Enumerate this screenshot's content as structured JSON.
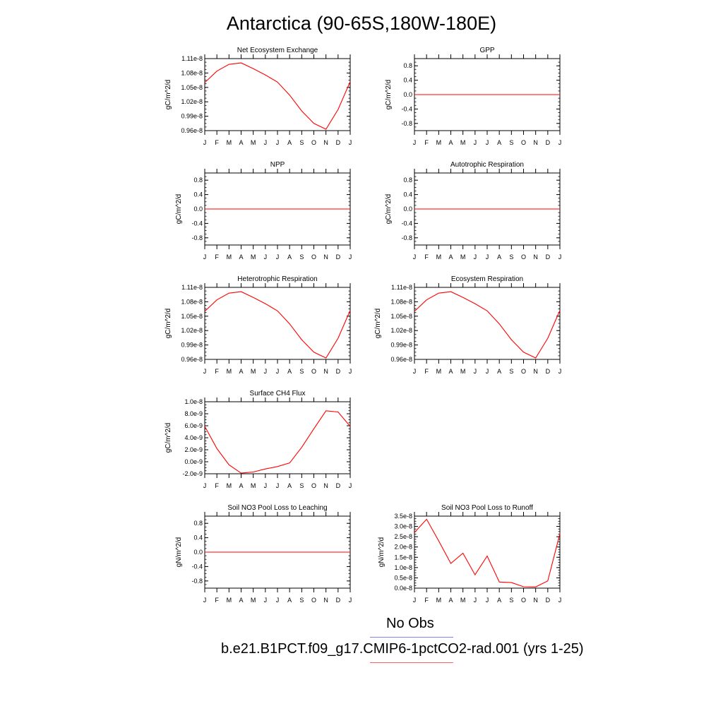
{
  "title": "Antarctica (90-65S,180W-180E)",
  "colors": {
    "model": "#ff0000",
    "obs": "#7f7fff"
  },
  "legend": {
    "obs_label": "No Obs",
    "model_label": "b.e21.B1PCT.f09_g17.CMIP6-1pctCO2-rad.001 (yrs 1-25)"
  },
  "chart_data": [
    {
      "type": "line",
      "title": "Net Ecosystem Exchange",
      "ylabel": "gC/m^2/d",
      "categories": [
        "J",
        "F",
        "M",
        "A",
        "M",
        "J",
        "J",
        "A",
        "S",
        "O",
        "N",
        "D",
        "J"
      ],
      "ylim": [
        9.6e-09,
        1.11e-08
      ],
      "yticks": [
        9.6e-09,
        9.9e-09,
        1.02e-08,
        1.05e-08,
        1.08e-08,
        1.11e-08
      ],
      "yticklabels": [
        "0.96e-8",
        "0.99e-8",
        "1.02e-8",
        "1.05e-8",
        "1.08e-8",
        "1.11e-8"
      ],
      "series": [
        {
          "values": [
            1.06e-08,
            1.084e-08,
            1.098e-08,
            1.101e-08,
            1.089e-08,
            1.076e-08,
            1.061e-08,
            1.034e-08,
            1.001e-08,
            9.75e-09,
            9.63e-09,
            1.004e-08,
            1.062e-08
          ]
        }
      ]
    },
    {
      "type": "line",
      "title": "GPP",
      "ylabel": "gC/m^2/d",
      "categories": [
        "J",
        "F",
        "M",
        "A",
        "M",
        "J",
        "J",
        "A",
        "S",
        "O",
        "N",
        "D",
        "J"
      ],
      "ylim": [
        -1,
        1
      ],
      "yticks": [
        -0.8,
        -0.4,
        0.0,
        0.4,
        0.8
      ],
      "yticklabels": [
        "-0.8",
        "-0.4",
        "0.0",
        "0.4",
        "0.8"
      ],
      "series": [
        {
          "values": [
            0,
            0,
            0,
            0,
            0,
            0,
            0,
            0,
            0,
            0,
            0,
            0,
            0
          ]
        }
      ]
    },
    {
      "type": "line",
      "title": "NPP",
      "ylabel": "gC/m^2/d",
      "categories": [
        "J",
        "F",
        "M",
        "A",
        "M",
        "J",
        "J",
        "A",
        "S",
        "O",
        "N",
        "D",
        "J"
      ],
      "ylim": [
        -1,
        1
      ],
      "yticks": [
        -0.8,
        -0.4,
        0.0,
        0.4,
        0.8
      ],
      "yticklabels": [
        "-0.8",
        "-0.4",
        "0.0",
        "0.4",
        "0.8"
      ],
      "series": [
        {
          "values": [
            0,
            0,
            0,
            0,
            0,
            0,
            0,
            0,
            0,
            0,
            0,
            0,
            0
          ]
        }
      ]
    },
    {
      "type": "line",
      "title": "Autotrophic Respiration",
      "ylabel": "gC/m^2/d",
      "categories": [
        "J",
        "F",
        "M",
        "A",
        "M",
        "J",
        "J",
        "A",
        "S",
        "O",
        "N",
        "D",
        "J"
      ],
      "ylim": [
        -1,
        1
      ],
      "yticks": [
        -0.8,
        -0.4,
        0.0,
        0.4,
        0.8
      ],
      "yticklabels": [
        "-0.8",
        "-0.4",
        "0.0",
        "0.4",
        "0.8"
      ],
      "series": [
        {
          "values": [
            0,
            0,
            0,
            0,
            0,
            0,
            0,
            0,
            0,
            0,
            0,
            0,
            0
          ]
        }
      ]
    },
    {
      "type": "line",
      "title": "Heterotrophic Respiration",
      "ylabel": "gC/m^2/d",
      "categories": [
        "J",
        "F",
        "M",
        "A",
        "M",
        "J",
        "J",
        "A",
        "S",
        "O",
        "N",
        "D",
        "J"
      ],
      "ylim": [
        9.6e-09,
        1.11e-08
      ],
      "yticks": [
        9.6e-09,
        9.9e-09,
        1.02e-08,
        1.05e-08,
        1.08e-08,
        1.11e-08
      ],
      "yticklabels": [
        "0.96e-8",
        "0.99e-8",
        "1.02e-8",
        "1.05e-8",
        "1.08e-8",
        "1.11e-8"
      ],
      "series": [
        {
          "values": [
            1.06e-08,
            1.084e-08,
            1.098e-08,
            1.101e-08,
            1.089e-08,
            1.076e-08,
            1.061e-08,
            1.034e-08,
            1.001e-08,
            9.75e-09,
            9.63e-09,
            1.004e-08,
            1.062e-08
          ]
        }
      ]
    },
    {
      "type": "line",
      "title": "Ecosystem Respiration",
      "ylabel": "gC/m^2/d",
      "categories": [
        "J",
        "F",
        "M",
        "A",
        "M",
        "J",
        "J",
        "A",
        "S",
        "O",
        "N",
        "D",
        "J"
      ],
      "ylim": [
        9.6e-09,
        1.11e-08
      ],
      "yticks": [
        9.6e-09,
        9.9e-09,
        1.02e-08,
        1.05e-08,
        1.08e-08,
        1.11e-08
      ],
      "yticklabels": [
        "0.96e-8",
        "0.99e-8",
        "1.02e-8",
        "1.05e-8",
        "1.08e-8",
        "1.11e-8"
      ],
      "series": [
        {
          "values": [
            1.06e-08,
            1.084e-08,
            1.098e-08,
            1.101e-08,
            1.089e-08,
            1.076e-08,
            1.061e-08,
            1.034e-08,
            1.001e-08,
            9.75e-09,
            9.63e-09,
            1.004e-08,
            1.062e-08
          ]
        }
      ]
    },
    {
      "type": "line",
      "title": "Surface CH4 Flux",
      "ylabel": "gC/m^2/d",
      "categories": [
        "J",
        "F",
        "M",
        "A",
        "M",
        "J",
        "J",
        "A",
        "S",
        "O",
        "N",
        "D",
        "J"
      ],
      "ylim": [
        -2e-09,
        1e-08
      ],
      "yticks": [
        -2e-09,
        0,
        2e-09,
        4e-09,
        6e-09,
        8e-09,
        1e-08
      ],
      "yticklabels": [
        "-2.0e-9",
        "0.0e-9",
        "2.0e-9",
        "4.0e-9",
        "6.0e-9",
        "8.0e-9",
        "1.0e-8"
      ],
      "series": [
        {
          "values": [
            5.9e-09,
            2.2e-09,
            -5e-10,
            -1.9e-09,
            -1.7e-09,
            -1.2e-09,
            -8e-10,
            -2e-10,
            2.4e-09,
            5.5e-09,
            8.5e-09,
            8.3e-09,
            5.9e-09
          ]
        }
      ]
    },
    {
      "type": "line",
      "title": "Soil NO3 Pool Loss to Leaching",
      "ylabel": "gN/m^2/d",
      "categories": [
        "J",
        "F",
        "M",
        "A",
        "M",
        "J",
        "J",
        "A",
        "S",
        "O",
        "N",
        "D",
        "J"
      ],
      "ylim": [
        -1,
        1
      ],
      "yticks": [
        -0.8,
        -0.4,
        0.0,
        0.4,
        0.8
      ],
      "yticklabels": [
        "-0.8",
        "-0.4",
        "0.0",
        "0.4",
        "0.8"
      ],
      "series": [
        {
          "values": [
            0,
            0,
            0,
            0,
            0,
            0,
            0,
            0,
            0,
            0,
            0,
            0,
            0
          ]
        }
      ]
    },
    {
      "type": "line",
      "title": "Soil NO3 Pool Loss to Runoff",
      "ylabel": "gN/m^2/d",
      "categories": [
        "J",
        "F",
        "M",
        "A",
        "M",
        "J",
        "J",
        "A",
        "S",
        "O",
        "N",
        "D",
        "J"
      ],
      "ylim": [
        0,
        3.5e-08
      ],
      "yticks": [
        0,
        5e-09,
        1e-08,
        1.5e-08,
        2e-08,
        2.5e-08,
        3e-08,
        3.5e-08
      ],
      "yticklabels": [
        "0.0e-8",
        "0.5e-8",
        "1.0e-8",
        "1.5e-8",
        "2.0e-8",
        "2.5e-8",
        "3.0e-8",
        "3.5e-8"
      ],
      "series": [
        {
          "values": [
            2.7e-08,
            3.35e-08,
            2.3e-08,
            1.2e-08,
            1.7e-08,
            6.5e-09,
            1.56e-08,
            3e-09,
            2.7e-09,
            7e-10,
            6e-10,
            3.5e-09,
            2.65e-08
          ]
        }
      ]
    }
  ]
}
